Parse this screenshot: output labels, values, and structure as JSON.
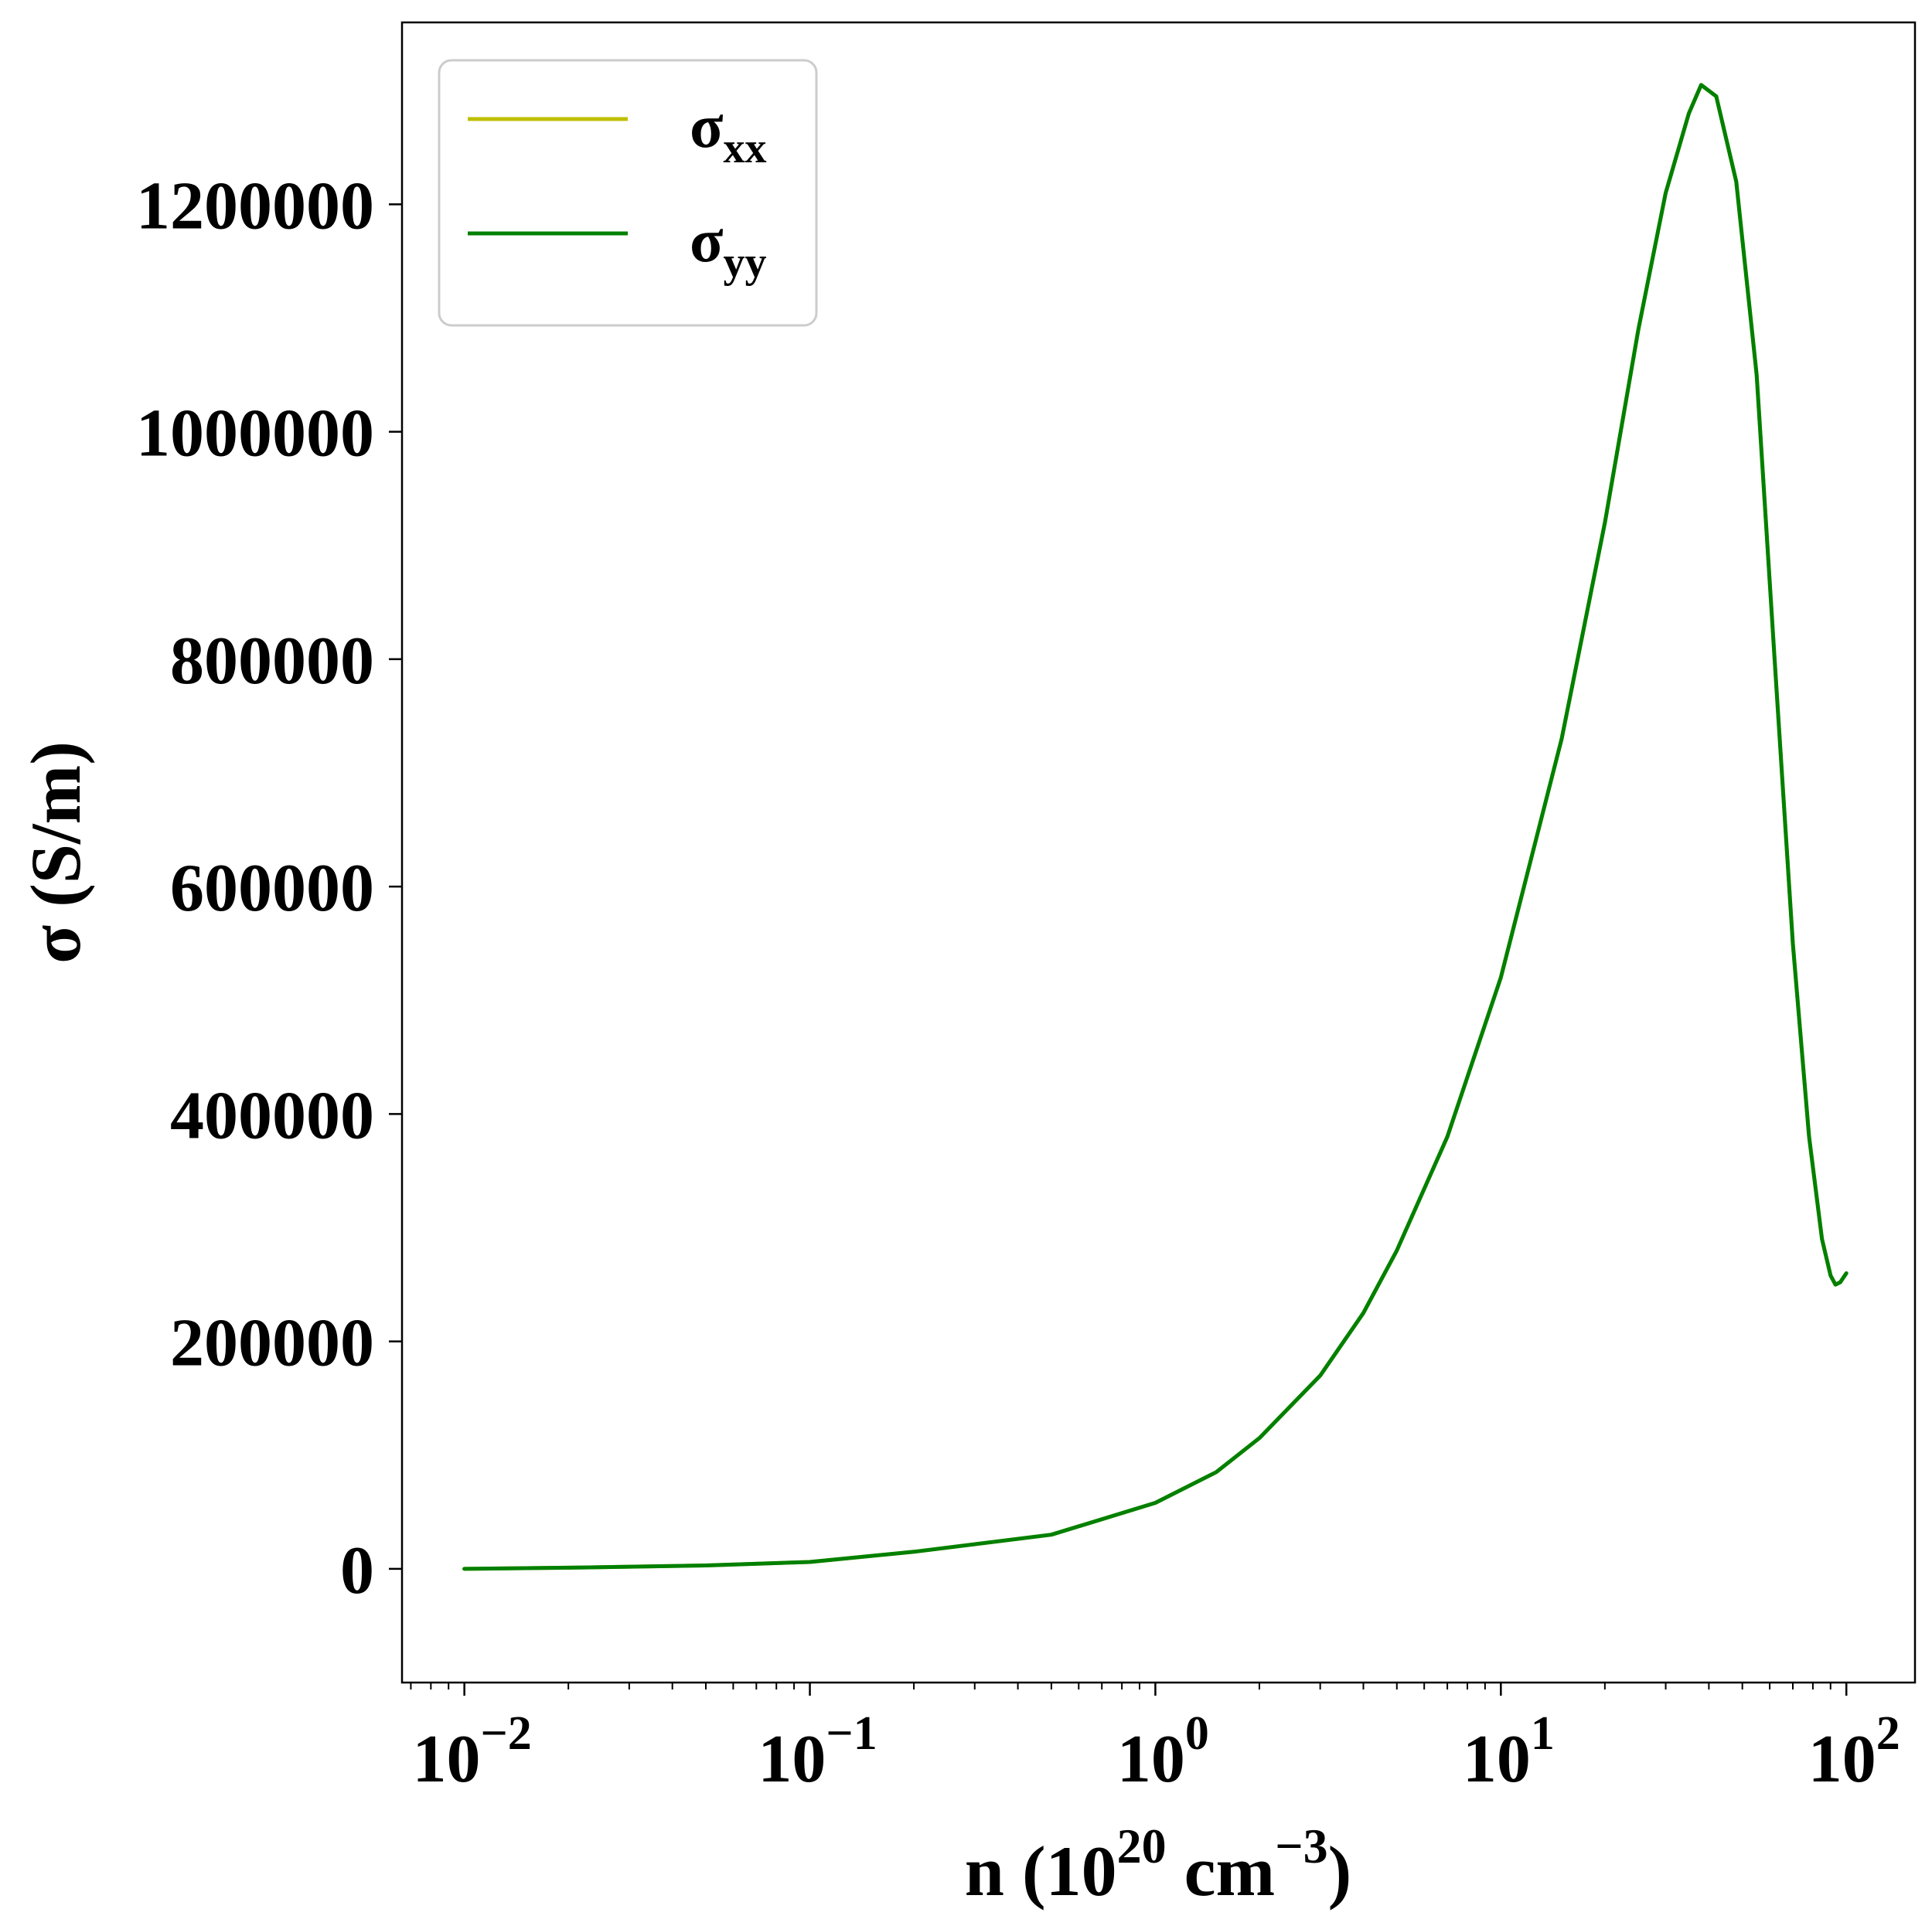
{
  "chart_data": {
    "type": "line",
    "xscale": "log",
    "xlim": [
      0.0066,
      158
    ],
    "ylim": [
      -100000,
      1360000
    ],
    "x_ticks": [
      {
        "base": "10",
        "exp": "−2"
      },
      {
        "base": "10",
        "exp": "−1"
      },
      {
        "base": "10",
        "exp": "0"
      },
      {
        "base": "10",
        "exp": "1"
      },
      {
        "base": "10",
        "exp": "2"
      }
    ],
    "y_ticks": [
      "0",
      "200000",
      "400000",
      "600000",
      "800000",
      "1000000",
      "1200000"
    ],
    "xlabel": {
      "prefix": "n (10",
      "sup1": "20",
      "middle": " cm",
      "sup2": "−3",
      "suffix": ")"
    },
    "ylabel": "σ (S/m)",
    "legend_position": "upper-left",
    "series": [
      {
        "name_main": "σ",
        "name_sub": "xx",
        "color": "#bfbf00",
        "x": [
          0.01,
          0.02,
          0.05,
          0.1,
          0.2,
          0.5,
          1,
          1.5,
          2,
          3,
          4,
          5,
          7,
          10,
          15,
          20,
          25,
          30,
          35,
          38,
          42,
          48,
          55,
          62,
          70,
          78,
          85,
          90,
          93,
          96,
          100
        ],
        "y": [
          0,
          1000,
          3000,
          6000,
          15000,
          30000,
          58000,
          85000,
          115000,
          170000,
          225000,
          280000,
          380000,
          520000,
          730000,
          920000,
          1090000,
          1210000,
          1280000,
          1305000,
          1295000,
          1220000,
          1050000,
          800000,
          550000,
          380000,
          290000,
          258000,
          250000,
          252000,
          260000
        ]
      },
      {
        "name_main": "σ",
        "name_sub": "yy",
        "color": "#008000",
        "x": [
          0.01,
          0.02,
          0.05,
          0.1,
          0.2,
          0.5,
          1,
          1.5,
          2,
          3,
          4,
          5,
          7,
          10,
          15,
          20,
          25,
          30,
          35,
          38,
          42,
          48,
          55,
          62,
          70,
          78,
          85,
          90,
          93,
          96,
          100
        ],
        "y": [
          0,
          1000,
          3000,
          6000,
          15000,
          30000,
          58000,
          85000,
          115000,
          170000,
          225000,
          280000,
          380000,
          520000,
          730000,
          920000,
          1090000,
          1210000,
          1280000,
          1305000,
          1295000,
          1220000,
          1050000,
          800000,
          550000,
          380000,
          290000,
          258000,
          250000,
          252000,
          260000
        ]
      }
    ]
  }
}
